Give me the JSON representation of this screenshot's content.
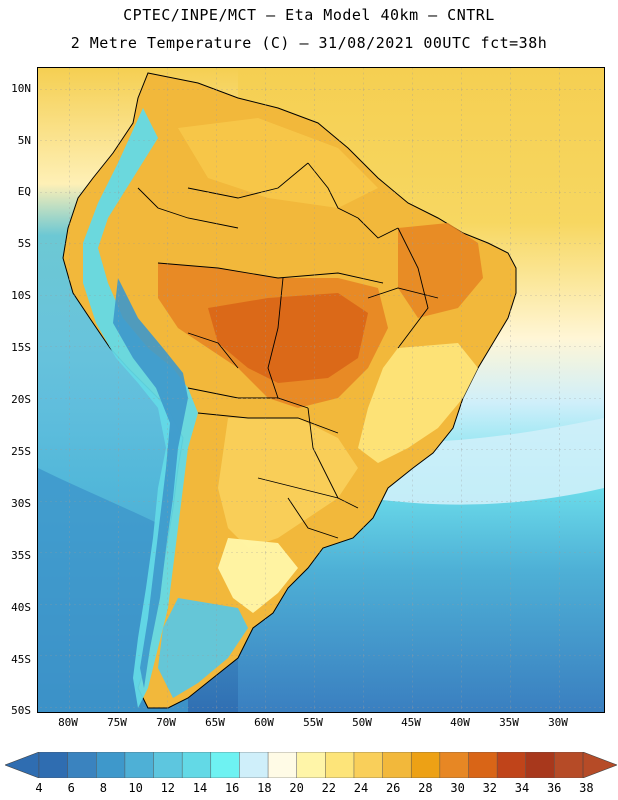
{
  "title": {
    "line1": "CPTEC/INPE/MCT –  Eta Model 40km – CNTRL",
    "line2": "2 Metre Temperature (C) – 31/08/2021 00UTC fct=38h"
  },
  "axes": {
    "latitude_labels": [
      "10N",
      "5N",
      "EQ",
      "5S",
      "10S",
      "15S",
      "20S",
      "25S",
      "30S",
      "35S",
      "40S",
      "45S",
      "50S"
    ],
    "longitude_labels": [
      "80W",
      "75W",
      "70W",
      "65W",
      "60W",
      "55W",
      "50W",
      "45W",
      "40W",
      "35W",
      "30W"
    ]
  },
  "colorbar": {
    "labels": [
      "4",
      "6",
      "8",
      "10",
      "12",
      "14",
      "16",
      "18",
      "20",
      "22",
      "24",
      "26",
      "28",
      "30",
      "32",
      "34",
      "36",
      "38"
    ],
    "colors": [
      "#2f6db1",
      "#3a83bf",
      "#3e98cb",
      "#4eb0d6",
      "#5dc6df",
      "#63d9e6",
      "#6ef2f2",
      "#cfeffa",
      "#fffbe6",
      "#fff5a8",
      "#fde479",
      "#f9cf5a",
      "#f2b83b",
      "#eda115",
      "#e78724",
      "#d96517",
      "#c0441a",
      "#a8381c",
      "#b64b27"
    ]
  },
  "map_colors": {
    "ocean_deep": "#3a7fc0",
    "ocean_mid": "#4eb0d6",
    "ocean_light": "#5dc6df",
    "ocean_pale": "#cfeffa",
    "ocean_warm": "#f5cf52",
    "land_warm": "#f2b83b",
    "land_hot": "#e78724",
    "land_hottest": "#d96517",
    "andes": "#63d9e6",
    "andes_dark": "#3e98cb",
    "border": "#000000"
  }
}
